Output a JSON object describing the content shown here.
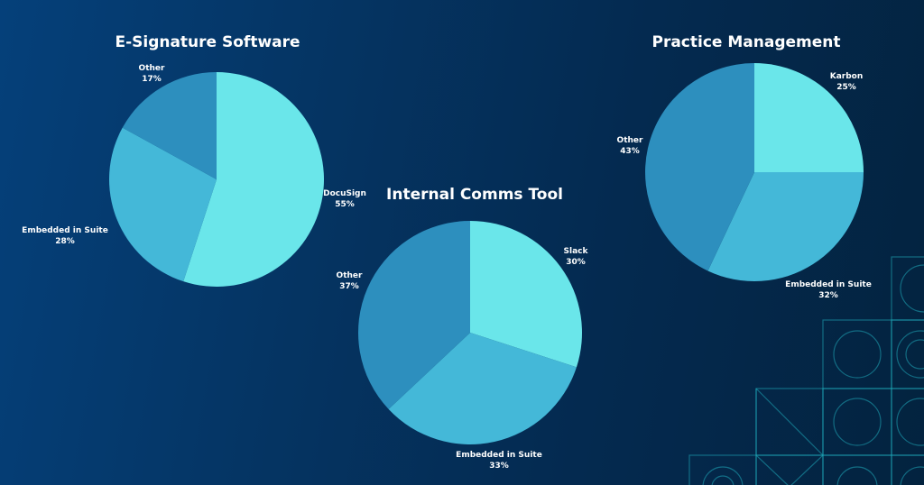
{
  "chart_data": [
    {
      "type": "pie",
      "title": "E-Signature Software",
      "slices": [
        {
          "label": "DocuSign",
          "value": 55,
          "pct_label": "55%",
          "color": "#6ae6ea"
        },
        {
          "label": "Embedded in Suite",
          "value": 28,
          "pct_label": "28%",
          "color": "#44b8d8"
        },
        {
          "label": "Other",
          "value": 17,
          "pct_label": "17%",
          "color": "#2d8fbe"
        }
      ]
    },
    {
      "type": "pie",
      "title": "Internal Comms Tool",
      "slices": [
        {
          "label": "Slack",
          "value": 30,
          "pct_label": "30%",
          "color": "#6ae6ea"
        },
        {
          "label": "Embedded in Suite",
          "value": 33,
          "pct_label": "33%",
          "color": "#44b8d8"
        },
        {
          "label": "Other",
          "value": 37,
          "pct_label": "37%",
          "color": "#2d8fbe"
        }
      ]
    },
    {
      "type": "pie",
      "title": "Practice Management",
      "slices": [
        {
          "label": "Karbon",
          "value": 25,
          "pct_label": "25%",
          "color": "#6ae6ea"
        },
        {
          "label": "Embedded in Suite",
          "value": 32,
          "pct_label": "32%",
          "color": "#44b8d8"
        },
        {
          "label": "Other",
          "value": 43,
          "pct_label": "43%",
          "color": "#2d8fbe"
        }
      ]
    }
  ]
}
